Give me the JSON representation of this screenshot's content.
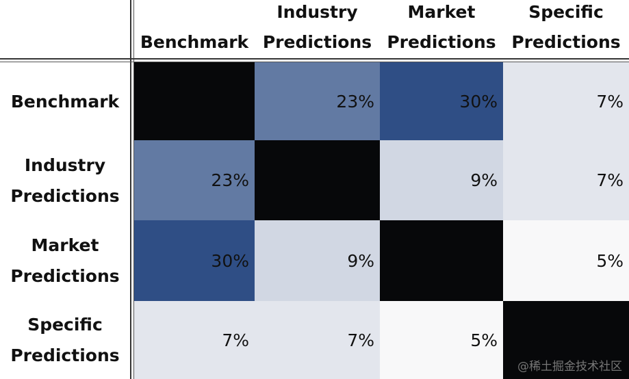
{
  "chart_data": {
    "type": "heatmap",
    "title": "",
    "columns": [
      "Benchmark",
      "Industry Predictions",
      "Market Predictions",
      "Specific Predictions"
    ],
    "rows": [
      "Benchmark",
      "Industry Predictions",
      "Market Predictions",
      "Specific Predictions"
    ],
    "values": [
      [
        null,
        23,
        30,
        7
      ],
      [
        23,
        null,
        9,
        7
      ],
      [
        30,
        9,
        null,
        5
      ],
      [
        7,
        7,
        5,
        null
      ]
    ],
    "labels": [
      [
        "",
        "23%",
        "30%",
        "7%"
      ],
      [
        "23%",
        "",
        "9%",
        "7%"
      ],
      [
        "30%",
        "9%",
        "",
        "5%"
      ],
      [
        "7%",
        "7%",
        "5%",
        ""
      ]
    ],
    "diagonal_color": "#07080a",
    "color_scale": {
      "min": 5,
      "max": 30,
      "low": "#f8f8f9",
      "high": "#2f4e85"
    }
  },
  "watermark": "@稀土掘金技术社区"
}
